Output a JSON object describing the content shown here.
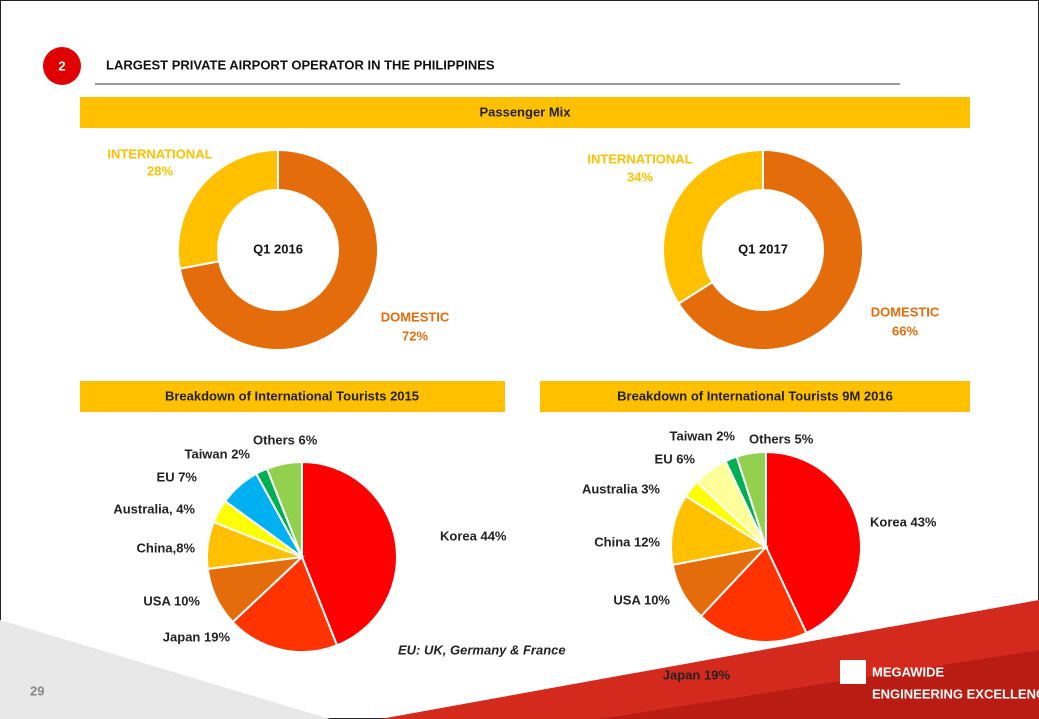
{
  "header": {
    "badge": "2",
    "title": "LARGEST PRIVATE AIRPORT OPERATOR IN THE PHILIPPINES"
  },
  "panels": [
    "Passenger Mix",
    "Breakdown of International Tourists 2015",
    "Breakdown of International Tourists 9M 2016"
  ],
  "chart_data": [
    {
      "type": "donut",
      "center_label": "Q1 2016",
      "categories": [
        "DOMESTIC",
        "INTERNATIONAL"
      ],
      "values": [
        72,
        28
      ],
      "value_labels": [
        "72%",
        "28%"
      ],
      "colors": [
        "#e46c0a",
        "#ffc000"
      ]
    },
    {
      "type": "donut",
      "center_label": "Q1 2017",
      "categories": [
        "DOMESTIC",
        "INTERNATIONAL"
      ],
      "values": [
        66,
        34
      ],
      "value_labels": [
        "66%",
        "34%"
      ],
      "colors": [
        "#e46c0a",
        "#ffc000"
      ]
    },
    {
      "type": "pie",
      "values": [
        44,
        19,
        10,
        8,
        4,
        7,
        2,
        6
      ],
      "value_labels": [
        "Korea  44%",
        "Japan 19%",
        "USA 10%",
        "China,8%",
        "Australia, 4%",
        "EU 7%",
        "Taiwan 2%",
        "Others 6%"
      ],
      "colors": [
        "#ff0000",
        "#ff3300",
        "#e46c0a",
        "#ffc000",
        "#ffff00",
        "#00b0f0",
        "#00b050",
        "#92d050"
      ]
    },
    {
      "type": "pie",
      "values": [
        43,
        19,
        10,
        12,
        3,
        6,
        2,
        5
      ],
      "value_labels": [
        "Korea 43%",
        "Japan 19%",
        "USA 10%",
        "China 12%",
        "Australia 3%",
        "EU 6%",
        "Taiwan 2%",
        "Others 5%"
      ],
      "colors": [
        "#ff0000",
        "#ff3300",
        "#e46c0a",
        "#ffc000",
        "#ffff00",
        "#ffff99",
        "#00b050",
        "#92d050"
      ]
    }
  ],
  "footnote": "EU: UK, Germany & France",
  "page_number": "29",
  "logo": {
    "name": "MEGAWIDE",
    "tagline": "ENGINEERING EXCELLENCE"
  }
}
